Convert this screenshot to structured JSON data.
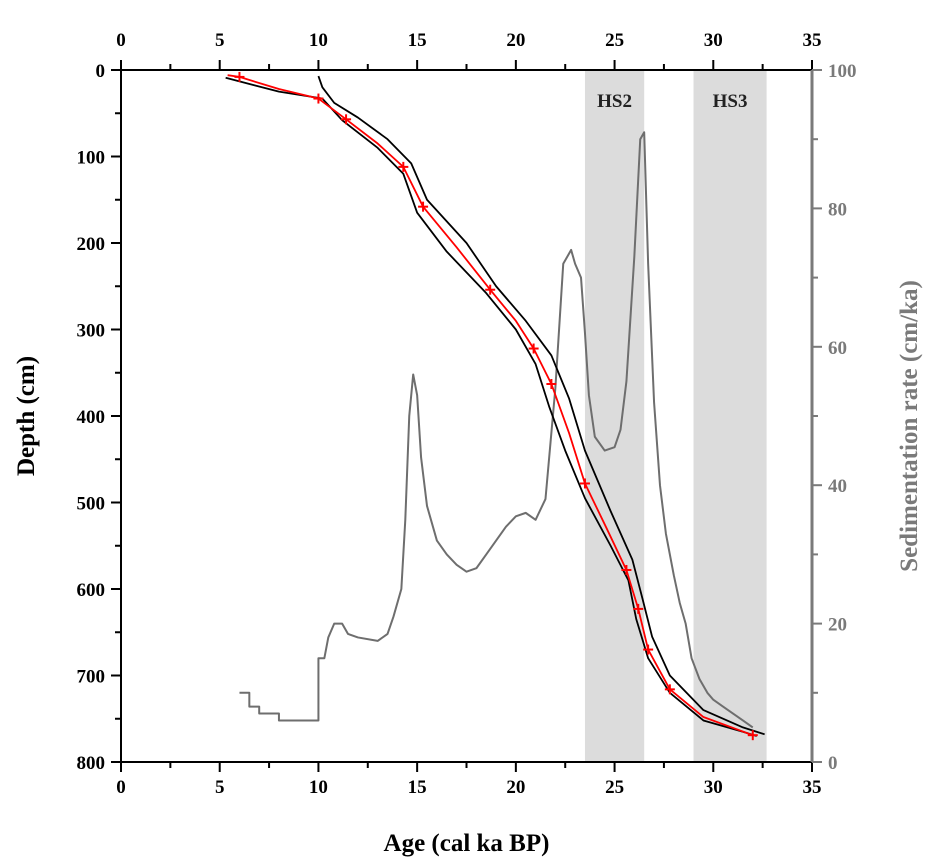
{
  "chart_data": {
    "type": "line",
    "xlabel": "Age (cal ka BP)",
    "ylabel_left": "Depth (cm)",
    "ylabel_right": "Sedimentation rate (cm/ka)",
    "xlim": [
      0,
      35
    ],
    "ylim_left": [
      0,
      800
    ],
    "ylim_left_inverted": true,
    "ylim_right": [
      0,
      100
    ],
    "x_ticks": [
      "0",
      "5",
      "10",
      "15",
      "20",
      "25",
      "30",
      "35"
    ],
    "y_left_ticks": [
      "0",
      "100",
      "200",
      "300",
      "400",
      "500",
      "600",
      "700",
      "800"
    ],
    "y_right_ticks": [
      "0",
      "20",
      "40",
      "60",
      "80",
      "100"
    ],
    "mirrored_top_axis": true,
    "grid": false,
    "colors": {
      "median": "#ff0000",
      "envelope": "#000000",
      "sed_rate": "#6e6e6e",
      "band": "#dcdcdc",
      "axis_right": "#7a7a7a"
    },
    "shaded_bands": [
      {
        "label": "HS2",
        "x": [
          23.5,
          26.5
        ]
      },
      {
        "label": "HS3",
        "x": [
          29.0,
          32.7
        ]
      }
    ],
    "series": [
      {
        "role": "age-depth median",
        "axis": "left",
        "points": [
          [
            5.4,
            6
          ],
          [
            6,
            8
          ],
          [
            8,
            22
          ],
          [
            10,
            33
          ],
          [
            11.4,
            57
          ],
          [
            13,
            85
          ],
          [
            14.3,
            112
          ],
          [
            15.3,
            158
          ],
          [
            17,
            205
          ],
          [
            18.7,
            254
          ],
          [
            20,
            290
          ],
          [
            20.9,
            322
          ],
          [
            21.8,
            363
          ],
          [
            22.7,
            420
          ],
          [
            23.5,
            478
          ],
          [
            24.6,
            530
          ],
          [
            25.6,
            578
          ],
          [
            26.2,
            623
          ],
          [
            26.7,
            670
          ],
          [
            27.8,
            716
          ],
          [
            29.5,
            748
          ],
          [
            32,
            769
          ]
        ]
      },
      {
        "role": "dated samples",
        "axis": "left",
        "marker": "+",
        "points": [
          [
            6,
            8
          ],
          [
            10,
            33
          ],
          [
            11.4,
            57
          ],
          [
            14.3,
            112
          ],
          [
            15.3,
            158
          ],
          [
            18.7,
            254
          ],
          [
            20.9,
            322
          ],
          [
            21.8,
            363
          ],
          [
            23.5,
            478
          ],
          [
            25.6,
            578
          ],
          [
            26.2,
            623
          ],
          [
            26.7,
            670
          ],
          [
            27.8,
            716
          ],
          [
            32,
            769
          ]
        ]
      },
      {
        "role": "age-depth envelope (younger bound)",
        "axis": "left",
        "points": [
          [
            5.3,
            9
          ],
          [
            8,
            25
          ],
          [
            10.2,
            33
          ],
          [
            11.2,
            58
          ],
          [
            13,
            90
          ],
          [
            14.3,
            120
          ],
          [
            15,
            165
          ],
          [
            16.5,
            210
          ],
          [
            18.5,
            258
          ],
          [
            20,
            300
          ],
          [
            21,
            340
          ],
          [
            21.7,
            390
          ],
          [
            22.5,
            440
          ],
          [
            23.5,
            495
          ],
          [
            24.8,
            550
          ],
          [
            25.7,
            590
          ],
          [
            26.1,
            635
          ],
          [
            26.7,
            680
          ],
          [
            27.8,
            720
          ],
          [
            29.5,
            752
          ],
          [
            31.5,
            765
          ],
          [
            32.2,
            770
          ]
        ]
      },
      {
        "role": "age-depth envelope (older bound)",
        "axis": "left",
        "points": [
          [
            10,
            7
          ],
          [
            10.2,
            20
          ],
          [
            10.8,
            38
          ],
          [
            12,
            55
          ],
          [
            13.5,
            80
          ],
          [
            14.7,
            108
          ],
          [
            15.5,
            150
          ],
          [
            17.5,
            200
          ],
          [
            19,
            250
          ],
          [
            20.5,
            290
          ],
          [
            21.8,
            330
          ],
          [
            22.7,
            380
          ],
          [
            23.5,
            440
          ],
          [
            24.8,
            510
          ],
          [
            25.9,
            566
          ],
          [
            26.4,
            610
          ],
          [
            26.9,
            655
          ],
          [
            27.8,
            700
          ],
          [
            29.5,
            740
          ],
          [
            31.5,
            760
          ],
          [
            32.6,
            768
          ]
        ]
      },
      {
        "role": "sedimentation rate",
        "axis": "right",
        "points": [
          [
            6,
            10
          ],
          [
            6.5,
            10
          ],
          [
            6.5,
            8
          ],
          [
            7,
            8
          ],
          [
            7,
            7
          ],
          [
            8,
            7
          ],
          [
            8,
            6
          ],
          [
            10,
            6
          ],
          [
            10,
            15
          ],
          [
            10.3,
            15
          ],
          [
            10.5,
            18
          ],
          [
            10.8,
            20
          ],
          [
            11.2,
            20
          ],
          [
            11.5,
            18.5
          ],
          [
            12,
            18
          ],
          [
            13,
            17.5
          ],
          [
            13.5,
            18.5
          ],
          [
            13.8,
            21
          ],
          [
            14.2,
            25
          ],
          [
            14.4,
            35
          ],
          [
            14.6,
            50
          ],
          [
            14.8,
            56
          ],
          [
            15,
            53
          ],
          [
            15.2,
            44
          ],
          [
            15.5,
            37
          ],
          [
            16,
            32
          ],
          [
            16.5,
            30
          ],
          [
            17,
            28.5
          ],
          [
            17.5,
            27.5
          ],
          [
            18,
            28
          ],
          [
            18.5,
            30
          ],
          [
            19,
            32
          ],
          [
            19.5,
            34
          ],
          [
            20,
            35.5
          ],
          [
            20.5,
            36
          ],
          [
            21,
            35
          ],
          [
            21.5,
            38
          ],
          [
            22,
            54
          ],
          [
            22.4,
            72
          ],
          [
            22.8,
            74
          ],
          [
            23,
            72
          ],
          [
            23.3,
            70
          ],
          [
            23.5,
            62
          ],
          [
            23.7,
            53
          ],
          [
            24,
            47
          ],
          [
            24.5,
            45
          ],
          [
            25,
            45.5
          ],
          [
            25.3,
            48
          ],
          [
            25.6,
            55
          ],
          [
            26,
            73
          ],
          [
            26.3,
            90
          ],
          [
            26.5,
            91
          ],
          [
            26.7,
            72
          ],
          [
            27,
            52
          ],
          [
            27.3,
            40
          ],
          [
            27.6,
            33
          ],
          [
            28,
            27
          ],
          [
            28.3,
            23
          ],
          [
            28.6,
            20
          ],
          [
            28.9,
            15
          ],
          [
            29.3,
            12
          ],
          [
            29.7,
            10
          ],
          [
            30,
            9
          ],
          [
            30.5,
            8
          ],
          [
            31,
            7
          ],
          [
            31.5,
            6
          ],
          [
            32,
            5
          ]
        ]
      }
    ]
  }
}
